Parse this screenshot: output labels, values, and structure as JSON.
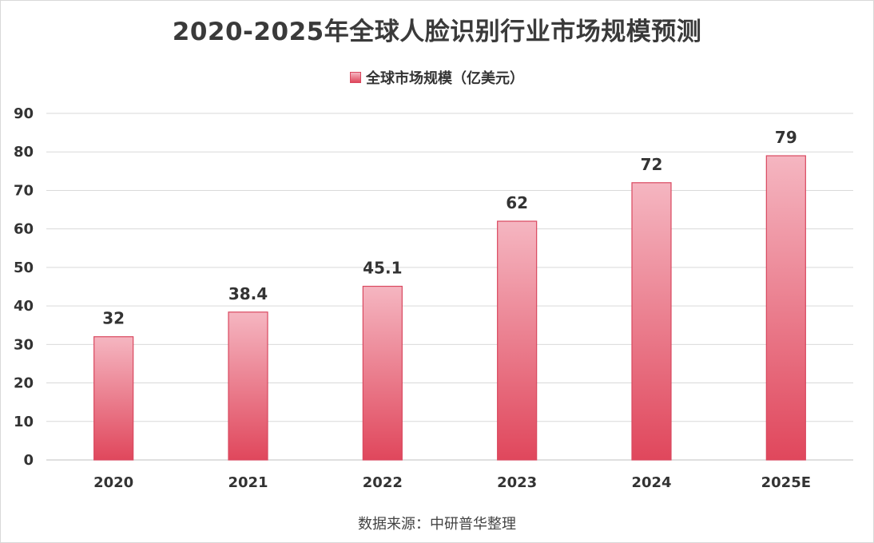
{
  "chart_data": {
    "type": "bar",
    "title": "2020-2025年全球人脸识别行业市场规模预测",
    "categories": [
      "2020",
      "2021",
      "2022",
      "2023",
      "2024",
      "2025E"
    ],
    "series": [
      {
        "name": "全球市场规模（亿美元）",
        "values": [
          32,
          38.4,
          45.1,
          62,
          72,
          79
        ]
      }
    ],
    "data_labels": [
      "32",
      "38.4",
      "45.1",
      "62",
      "72",
      "79"
    ],
    "ylim": [
      0,
      90
    ],
    "yticks": [
      0,
      10,
      20,
      30,
      40,
      50,
      60,
      70,
      80,
      90
    ],
    "grid": true,
    "legend_position": "top-center",
    "bar_color_top": "#f5b6c1",
    "bar_color_bottom": "#e0475c",
    "bar_border_color": "#d9485f"
  },
  "source_note": "数据来源：中研普华整理"
}
